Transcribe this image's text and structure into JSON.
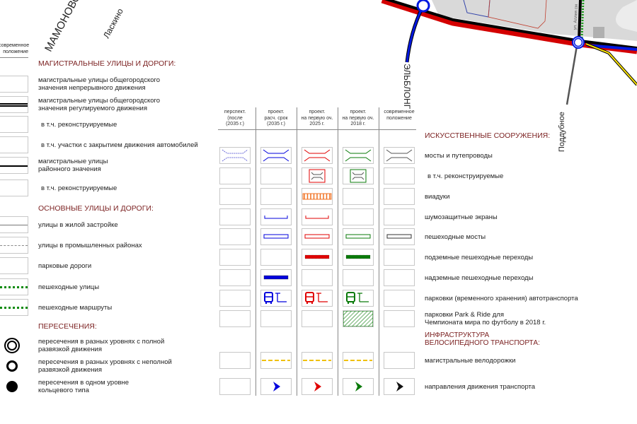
{
  "map": {
    "place_labels": [
      "МАМОНОВО",
      "Ласкино",
      "ЭЛЬБЛОНГ",
      "Поддубное",
      "ул. Аллея см"
    ],
    "colors": {
      "main_road": "#000000",
      "road_edge": "#d40000",
      "blue_road": "#0018e0",
      "yellow_road": "#ffe600",
      "built_area": "#d6d6d6"
    }
  },
  "left_legend": {
    "column_header": "современное положение",
    "sections": [
      {
        "title": "МАГИСТРАЛЬНЫЕ УЛИЦЫ И ДОРОГИ:",
        "items": [
          {
            "label": "магистральные улицы общегородского\nзначения непрерывного движения",
            "symbol": "none"
          },
          {
            "label": "магистральные улицы общегородского\nзначения регулируемого движения",
            "symbol": "double-black-line"
          },
          {
            "label": "в т.ч. реконструируемые",
            "symbol": "none"
          },
          {
            "label": "в т.ч. участки с закрытием движения автомобилей",
            "symbol": "none"
          },
          {
            "label": "магистральные улицы\nрайонного значения",
            "symbol": "black-line"
          },
          {
            "label": "в т.ч. реконструируемые",
            "symbol": "none"
          }
        ]
      },
      {
        "title": "ОСНОВНЫЕ УЛИЦЫ И ДОРОГИ:",
        "items": [
          {
            "label": "улицы в жилой застройке",
            "symbol": "gray-line"
          },
          {
            "label": "улицы в промышленных районах",
            "symbol": "gray-dashed-line"
          },
          {
            "label": "парковые дороги",
            "symbol": "none"
          },
          {
            "label": "пешеходные улицы",
            "symbol": "green-dotted-line"
          },
          {
            "label": "пешеходные маршруты",
            "symbol": "green-dotted-line"
          }
        ]
      },
      {
        "title": "ПЕРЕСЕЧЕНИЯ:",
        "items": [
          {
            "label": "пересечения в разных уровнях с полной\nразвязкой движения",
            "symbol": "double-ring"
          },
          {
            "label": "пересечения в разных уровнях с неполной\nразвязкой движения",
            "symbol": "ring"
          },
          {
            "label": "пересечения в одном уровне\nкольцевого типа",
            "symbol": "dot"
          }
        ]
      }
    ]
  },
  "table": {
    "columns": [
      {
        "header": "перспект.\n(после\n(2035 г.)",
        "color": "#6a6ad8"
      },
      {
        "header": "проект.\nрасч. срок\n(2035 г.)",
        "color": "#0000dd"
      },
      {
        "header": "проект.\nна первую оч.\n2025 г.",
        "color": "#e00000"
      },
      {
        "header": "проект.\nна первую оч.\n2018 г.",
        "color": "#0a7a0a"
      },
      {
        "header": "современное\nположение",
        "color": "#111111"
      }
    ],
    "section_headers": [
      "ИСКУССТВЕННЫЕ СООРУЖЕНИЯ:",
      "ИНФРАСТРУКТУРА\nВЕЛОСИПЕДНОГО ТРАНСПОРТА:"
    ],
    "rows": [
      {
        "label": "мосты и путепроводы",
        "symbol": "bridge",
        "cells": [
          true,
          true,
          true,
          true,
          true
        ]
      },
      {
        "label": "в т.ч. реконструируемые",
        "symbol": "bridge-framed",
        "cells": [
          false,
          false,
          true,
          true,
          false
        ]
      },
      {
        "label": "виадуки",
        "symbol": "viaduct",
        "cells": [
          false,
          false,
          true,
          false,
          false
        ]
      },
      {
        "label": "шумозащитные экраны",
        "symbol": "noise-screen",
        "cells": [
          false,
          true,
          true,
          false,
          false
        ]
      },
      {
        "label": "пешеходные мосты",
        "symbol": "outline-bar",
        "cells": [
          false,
          true,
          true,
          true,
          true
        ]
      },
      {
        "label": "подземные пешеходные переходы",
        "symbol": "solid-bar",
        "cells": [
          false,
          false,
          true,
          true,
          false
        ]
      },
      {
        "label": "надземные пешеходные переходы",
        "symbol": "solid-bar",
        "cells": [
          false,
          true,
          false,
          false,
          false
        ]
      },
      {
        "label": "парковки (временного хранения) автотранспорта",
        "symbol": "bus-parking",
        "cells": [
          false,
          true,
          true,
          true,
          false
        ]
      },
      {
        "label": "парковки Park & Ride для\nЧемпионата мира по футболу в 2018 г.",
        "symbol": "hatch",
        "cells": [
          false,
          false,
          false,
          true,
          false
        ]
      },
      {
        "label": "магистральные велодорожки",
        "symbol": "bike-dash",
        "cells": [
          false,
          true,
          true,
          true,
          false
        ]
      },
      {
        "label": "направления движения транспорта",
        "symbol": "arrow",
        "cells": [
          false,
          true,
          true,
          true,
          true
        ]
      }
    ]
  },
  "colors": {
    "heading": "#7a1f1f",
    "bike_lane": "#f0c000",
    "viaduct": "#f07020"
  }
}
